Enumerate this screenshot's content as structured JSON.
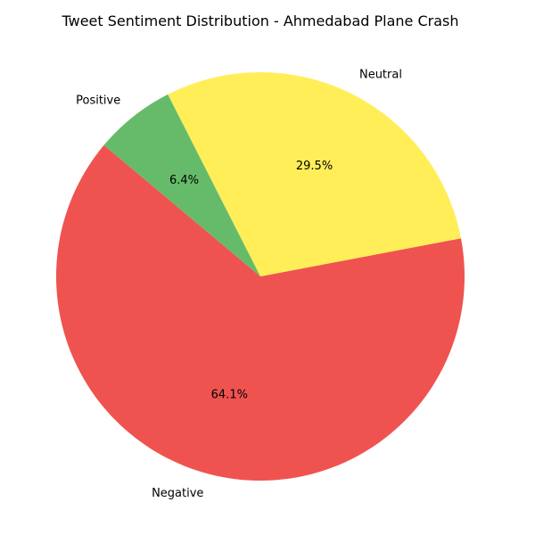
{
  "chart_data": {
    "type": "pie",
    "title": "Tweet Sentiment Distribution - Ahmedabad Plane Crash",
    "slices": [
      {
        "label": "Negative",
        "value": 64.1,
        "pct_label": "64.1%",
        "color": "#ef5350"
      },
      {
        "label": "Neutral",
        "value": 29.5,
        "pct_label": "29.5%",
        "color": "#ffee58"
      },
      {
        "label": "Positive",
        "value": 6.4,
        "pct_label": "6.4%",
        "color": "#66bb6a"
      }
    ],
    "start_angle_deg": 140,
    "direction": "counterclockwise",
    "legend": "none"
  }
}
